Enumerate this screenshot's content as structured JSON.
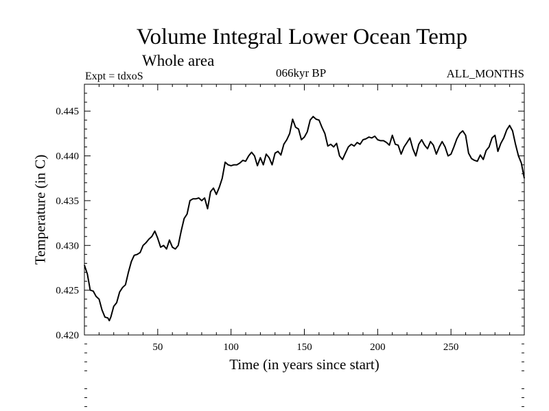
{
  "chart_data": {
    "type": "line",
    "title": "Volume Integral Lower Ocean Temp",
    "subtitle": "Whole area",
    "experiment_label": "Expt = tdxoS",
    "period_label": "066kyr BP",
    "months_label": "ALL_MONTHS",
    "xlabel": "Time (in years since start)",
    "ylabel": "Temperature (in C)",
    "xlim": [
      0,
      300
    ],
    "ylim": [
      0.42,
      0.448
    ],
    "x_ticks": [
      50,
      100,
      150,
      200,
      250
    ],
    "x_tick_labels": [
      "50",
      "100",
      "150",
      "200",
      "250"
    ],
    "y_ticks": [
      0.42,
      0.425,
      0.43,
      0.435,
      0.44,
      0.445
    ],
    "y_tick_labels": [
      "0.420",
      "0.425",
      "0.430",
      "0.435",
      "0.440",
      "0.445"
    ],
    "grid": false,
    "line_color": "#000000",
    "series": [
      {
        "x": [
          0,
          2,
          4,
          6,
          8,
          10,
          12,
          14,
          16,
          17,
          18,
          20,
          22,
          24,
          26,
          28,
          30,
          32,
          34,
          36,
          38,
          40,
          42,
          44,
          46,
          48,
          50,
          52,
          54,
          56,
          58,
          60,
          62,
          64,
          66,
          68,
          70,
          72,
          74,
          76,
          78,
          80,
          82,
          84,
          86,
          88,
          90,
          92,
          94,
          96,
          98,
          100,
          102,
          104,
          106,
          108,
          110,
          112,
          114,
          116,
          118,
          120,
          122,
          124,
          126,
          128,
          130,
          132,
          134,
          136,
          138,
          140,
          142,
          144,
          146,
          148,
          150,
          152,
          154,
          156,
          158,
          160,
          162,
          164,
          166,
          168,
          170,
          172,
          174,
          176,
          178,
          180,
          182,
          184,
          186,
          188,
          190,
          192,
          194,
          196,
          198,
          200,
          202,
          204,
          206,
          208,
          210,
          212,
          214,
          216,
          218,
          220,
          222,
          224,
          226,
          228,
          230,
          232,
          234,
          236,
          238,
          240,
          242,
          244,
          246,
          248,
          250,
          252,
          254,
          256,
          258,
          260,
          262,
          264,
          266,
          268,
          270,
          272,
          274,
          276,
          278,
          280,
          282,
          284,
          286,
          288,
          290,
          292,
          294,
          296,
          298,
          300
        ],
        "y": [
          0.4278,
          0.4268,
          0.425,
          0.4249,
          0.4243,
          0.424,
          0.4228,
          0.422,
          0.4219,
          0.4216,
          0.422,
          0.4232,
          0.4236,
          0.4248,
          0.4253,
          0.4256,
          0.427,
          0.4282,
          0.4289,
          0.429,
          0.4292,
          0.43,
          0.4303,
          0.4307,
          0.431,
          0.4316,
          0.4308,
          0.4298,
          0.43,
          0.4296,
          0.4306,
          0.4298,
          0.4296,
          0.43,
          0.4316,
          0.433,
          0.4335,
          0.435,
          0.4352,
          0.4352,
          0.4353,
          0.435,
          0.4353,
          0.4341,
          0.436,
          0.4364,
          0.4357,
          0.4365,
          0.4375,
          0.4393,
          0.439,
          0.4389,
          0.439,
          0.439,
          0.4392,
          0.4395,
          0.4394,
          0.44,
          0.4404,
          0.44,
          0.4389,
          0.4398,
          0.439,
          0.4402,
          0.4398,
          0.439,
          0.4403,
          0.4405,
          0.4401,
          0.4413,
          0.4418,
          0.4425,
          0.4441,
          0.4432,
          0.443,
          0.4418,
          0.4421,
          0.4427,
          0.444,
          0.4444,
          0.4441,
          0.444,
          0.4432,
          0.4425,
          0.4411,
          0.4413,
          0.441,
          0.4414,
          0.44,
          0.4396,
          0.4403,
          0.441,
          0.4413,
          0.4411,
          0.4415,
          0.4413,
          0.4418,
          0.4419,
          0.4421,
          0.442,
          0.4422,
          0.4418,
          0.4417,
          0.4417,
          0.4415,
          0.4412,
          0.4423,
          0.4413,
          0.4412,
          0.4402,
          0.441,
          0.4415,
          0.442,
          0.4408,
          0.44,
          0.4413,
          0.4418,
          0.4412,
          0.4408,
          0.4416,
          0.4412,
          0.4402,
          0.441,
          0.4416,
          0.441,
          0.44,
          0.4402,
          0.441,
          0.4419,
          0.4425,
          0.4428,
          0.4423,
          0.4403,
          0.4397,
          0.4395,
          0.4394,
          0.4401,
          0.4396,
          0.4406,
          0.441,
          0.442,
          0.4423,
          0.4405,
          0.4414,
          0.442,
          0.4429,
          0.4434,
          0.4428,
          0.4413,
          0.44,
          0.4392,
          0.4375
        ]
      }
    ]
  }
}
